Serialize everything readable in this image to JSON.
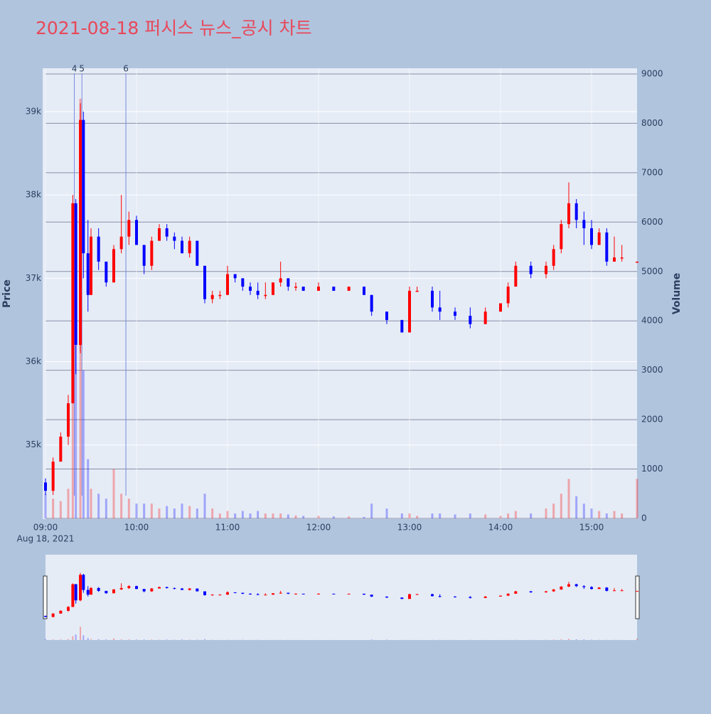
{
  "chart_data": {
    "type": "candlestick",
    "title": "2021-08-18 퍼시스 뉴스_공시 차트",
    "ylabel": "Price",
    "y2label": "Volume",
    "x_sublabel": "Aug 18, 2021",
    "up_color": "#ff0000",
    "down_color": "#0000ff",
    "x": [
      "09:00",
      "09:05",
      "09:10",
      "09:15",
      "09:18",
      "09:20",
      "09:23",
      "09:25",
      "09:28",
      "09:30",
      "09:35",
      "09:40",
      "09:45",
      "09:50",
      "09:55",
      "10:00",
      "10:05",
      "10:10",
      "10:15",
      "10:20",
      "10:25",
      "10:30",
      "10:35",
      "10:40",
      "10:45",
      "10:50",
      "10:55",
      "11:00",
      "11:05",
      "11:10",
      "11:15",
      "11:20",
      "11:25",
      "11:30",
      "11:35",
      "11:40",
      "11:45",
      "11:50",
      "12:00",
      "12:10",
      "12:20",
      "12:30",
      "12:35",
      "12:45",
      "12:55",
      "13:00",
      "13:05",
      "13:15",
      "13:20",
      "13:30",
      "13:40",
      "13:50",
      "14:00",
      "14:05",
      "14:10",
      "14:20",
      "14:30",
      "14:35",
      "14:40",
      "14:45",
      "14:50",
      "14:55",
      "15:00",
      "15:05",
      "15:10",
      "15:15",
      "15:20",
      "15:30"
    ],
    "open": [
      34550,
      34450,
      34800,
      35100,
      35500,
      37900,
      36200,
      38900,
      37300,
      36800,
      37500,
      37200,
      36950,
      37350,
      37500,
      37700,
      37400,
      37150,
      37450,
      37600,
      37500,
      37450,
      37300,
      37450,
      37150,
      36750,
      36800,
      36800,
      37050,
      37000,
      36900,
      36850,
      36800,
      36800,
      36950,
      37000,
      36900,
      36900,
      36850,
      36900,
      36850,
      36900,
      36800,
      36600,
      36500,
      36350,
      36850,
      36850,
      36650,
      36600,
      36550,
      36450,
      36600,
      36700,
      36900,
      37150,
      37050,
      37150,
      37350,
      37650,
      37900,
      37700,
      37600,
      37400,
      37550,
      37200,
      37250,
      37200
    ],
    "high": [
      34600,
      34850,
      35150,
      35600,
      38000,
      37950,
      39100,
      39000,
      37700,
      37600,
      37600,
      37200,
      37400,
      38000,
      37800,
      37750,
      37400,
      37500,
      37650,
      37650,
      37550,
      37500,
      37500,
      37450,
      37150,
      36850,
      36850,
      37150,
      37050,
      37000,
      36950,
      36950,
      36950,
      36950,
      37200,
      37000,
      36950,
      36900,
      36950,
      36900,
      36900,
      36900,
      36800,
      36600,
      36500,
      36900,
      36900,
      36900,
      36850,
      36650,
      36650,
      36650,
      36700,
      36950,
      37200,
      37200,
      37200,
      37400,
      37700,
      38150,
      37950,
      37800,
      37700,
      37600,
      37600,
      37500,
      37400,
      37200
    ],
    "low": [
      34400,
      34400,
      34800,
      35000,
      35500,
      35850,
      36100,
      37000,
      36600,
      36800,
      37100,
      36900,
      36950,
      37300,
      37400,
      37400,
      37050,
      37100,
      37450,
      37450,
      37350,
      37300,
      37250,
      37150,
      36700,
      36700,
      36750,
      36800,
      36950,
      36850,
      36800,
      36750,
      36750,
      36800,
      36900,
      36850,
      36850,
      36850,
      36850,
      36850,
      36850,
      36800,
      36550,
      36450,
      36350,
      36350,
      36850,
      36600,
      36500,
      36500,
      36400,
      36450,
      36600,
      36650,
      36900,
      37000,
      37000,
      37100,
      37300,
      37600,
      37600,
      37400,
      37350,
      37400,
      37150,
      37200,
      37200,
      37200
    ],
    "close": [
      34450,
      34800,
      35100,
      35500,
      37900,
      36200,
      38900,
      37300,
      36800,
      37500,
      37200,
      36950,
      37350,
      37500,
      37700,
      37400,
      37150,
      37450,
      37600,
      37500,
      37450,
      37300,
      37450,
      37150,
      36750,
      36800,
      36800,
      37050,
      37000,
      36900,
      36850,
      36800,
      36800,
      36950,
      37000,
      36900,
      36900,
      36850,
      36900,
      36850,
      36900,
      36800,
      36600,
      36500,
      36350,
      36850,
      36850,
      36650,
      36600,
      36550,
      36450,
      36600,
      36700,
      36900,
      37150,
      37050,
      37150,
      37350,
      37650,
      37900,
      37700,
      37600,
      37400,
      37550,
      37200,
      37250,
      37250,
      37200
    ],
    "volume": [
      500,
      400,
      350,
      600,
      2500,
      3500,
      8500,
      3000,
      1200,
      600,
      500,
      400,
      1000,
      500,
      400,
      300,
      300,
      300,
      200,
      250,
      200,
      300,
      250,
      200,
      500,
      200,
      100,
      150,
      100,
      150,
      100,
      150,
      100,
      100,
      100,
      80,
      60,
      50,
      50,
      40,
      40,
      30,
      300,
      200,
      100,
      100,
      50,
      100,
      100,
      80,
      100,
      80,
      50,
      100,
      150,
      100,
      200,
      300,
      500,
      800,
      450,
      300,
      200,
      150,
      100,
      150,
      100,
      800
    ],
    "xlim": [
      "09:00",
      "15:30"
    ],
    "xticks": [
      "09:00",
      "10:00",
      "11:00",
      "12:00",
      "13:00",
      "14:00",
      "15:00"
    ],
    "ylim": [
      34110,
      39520
    ],
    "yticks": [
      {
        "value": 35000,
        "label": "35k"
      },
      {
        "value": 36000,
        "label": "36k"
      },
      {
        "value": 37000,
        "label": "37k"
      },
      {
        "value": 38000,
        "label": "38k"
      },
      {
        "value": 39000,
        "label": "39k"
      }
    ],
    "y2lim": [
      -15,
      9115
    ],
    "y2ticks": [
      0,
      1000,
      2000,
      3000,
      4000,
      5000,
      6000,
      7000,
      8000,
      9000
    ],
    "annotations": [
      {
        "x": "09:19",
        "text": "4"
      },
      {
        "x": "09:24",
        "text": "5"
      },
      {
        "x": "09:53",
        "text": "6"
      }
    ]
  }
}
